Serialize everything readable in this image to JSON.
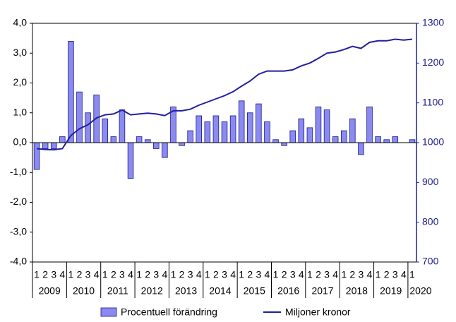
{
  "chart_data": {
    "type": "bar-line",
    "categories": [
      "1",
      "2",
      "3",
      "4",
      "1",
      "2",
      "3",
      "4",
      "1",
      "2",
      "3",
      "4",
      "1",
      "2",
      "3",
      "4",
      "1",
      "2",
      "3",
      "4",
      "1",
      "2",
      "3",
      "4",
      "1",
      "2",
      "3",
      "4",
      "1",
      "2",
      "3",
      "4",
      "1",
      "2",
      "3",
      "4",
      "1",
      "2",
      "3",
      "4",
      "1",
      "2",
      "3",
      "4",
      "1"
    ],
    "x_groups": [
      "2009",
      "2010",
      "2011",
      "2012",
      "2013",
      "2014",
      "2015",
      "2016",
      "2017",
      "2018",
      "2019",
      "2020"
    ],
    "series": [
      {
        "name": "Procentuell förändring",
        "type": "bar",
        "color": "#8a8af0",
        "edge_color": "#1a1a8c",
        "values": [
          -0.9,
          -0.2,
          -0.2,
          0.2,
          3.4,
          1.7,
          1.0,
          1.6,
          0.8,
          0.2,
          1.1,
          -1.2,
          0.2,
          0.1,
          -0.2,
          -0.5,
          1.2,
          -0.1,
          0.4,
          0.9,
          0.7,
          0.9,
          0.7,
          0.9,
          1.4,
          1.0,
          1.3,
          0.7,
          0.1,
          -0.1,
          0.4,
          0.8,
          0.5,
          1.2,
          1.1,
          0.2,
          0.4,
          0.8,
          -0.4,
          1.2,
          0.2,
          0.1,
          0.2,
          0.0,
          0.1
        ]
      },
      {
        "name": "Miljoner kronor",
        "type": "line",
        "axis": "y2",
        "color": "#1f1fa0",
        "values": [
          985,
          983,
          982,
          985,
          1018,
          1035,
          1045,
          1062,
          1070,
          1072,
          1082,
          1070,
          1072,
          1074,
          1072,
          1068,
          1080,
          1080,
          1084,
          1094,
          1102,
          1110,
          1118,
          1128,
          1142,
          1155,
          1172,
          1180,
          1180,
          1180,
          1183,
          1193,
          1200,
          1212,
          1225,
          1228,
          1234,
          1242,
          1237,
          1252,
          1256,
          1256,
          1260,
          1258,
          1260
        ]
      }
    ],
    "ylim": [
      -4,
      4
    ],
    "yticks": [
      {
        "value": -4,
        "label": "-4,0"
      },
      {
        "value": -3,
        "label": "-3,0"
      },
      {
        "value": -2,
        "label": "-2,0"
      },
      {
        "value": -1,
        "label": "-1,0"
      },
      {
        "value": 0,
        "label": "0,0"
      },
      {
        "value": 1,
        "label": "1,0"
      },
      {
        "value": 2,
        "label": "2,0"
      },
      {
        "value": 3,
        "label": "3,0"
      },
      {
        "value": 4,
        "label": "4,0"
      }
    ],
    "y2lim": [
      700,
      1300
    ],
    "y2ticks": [
      700,
      800,
      900,
      1000,
      1100,
      1200,
      1300
    ],
    "grid": false,
    "legend": "bottom"
  }
}
